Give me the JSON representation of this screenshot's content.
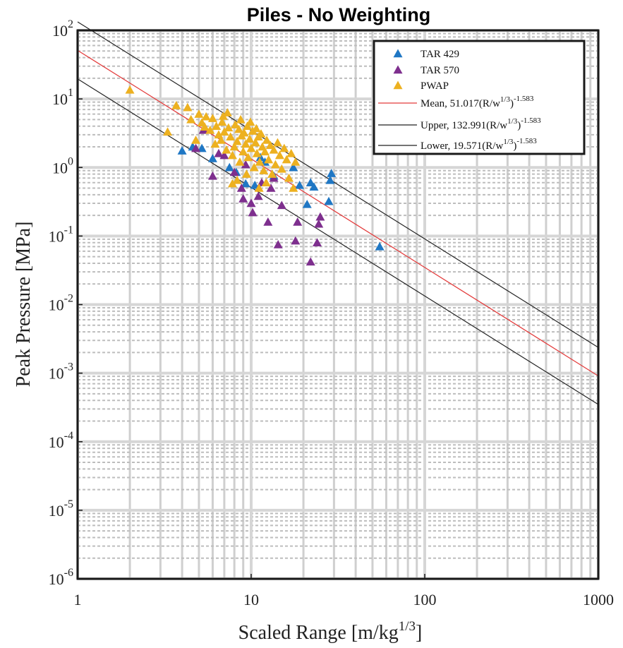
{
  "chart_data": {
    "type": "scatter",
    "title": "Piles - No Weighting",
    "xlabel": "Scaled Range [m/kg",
    "xlabel_sup": "1/3",
    "xlabel_end": "]",
    "ylabel": "Peak Pressure [MPa]",
    "xscale": "log",
    "yscale": "log",
    "xlim": [
      1,
      1000
    ],
    "ylim": [
      1e-06,
      100
    ],
    "x_ticks": [
      1,
      10,
      100,
      1000
    ],
    "x_tick_labels": [
      "1",
      "10",
      "100",
      "1000"
    ],
    "y_ticks": [
      {
        "value": 100,
        "base": "10",
        "exp": "2"
      },
      {
        "value": 10,
        "base": "10",
        "exp": "1"
      },
      {
        "value": 1,
        "base": "10",
        "exp": "0"
      },
      {
        "value": 0.1,
        "base": "10",
        "exp": "-1"
      },
      {
        "value": 0.01,
        "base": "10",
        "exp": "-2"
      },
      {
        "value": 0.001,
        "base": "10",
        "exp": "-3"
      },
      {
        "value": 0.0001,
        "base": "10",
        "exp": "-4"
      },
      {
        "value": 1e-05,
        "base": "10",
        "exp": "-5"
      },
      {
        "value": 1e-06,
        "base": "10",
        "exp": "-6"
      }
    ],
    "grid": true,
    "legend_position": "top-right",
    "series": [
      {
        "name": "TAR 429",
        "marker": "triangle",
        "color": "#1f77c4",
        "points": [
          [
            4.0,
            1.75
          ],
          [
            4.6,
            2.0
          ],
          [
            5.2,
            1.9
          ],
          [
            6.0,
            1.35
          ],
          [
            7.5,
            1.0
          ],
          [
            8.2,
            0.85
          ],
          [
            9.3,
            0.58
          ],
          [
            10.5,
            0.55
          ],
          [
            11.3,
            1.4
          ],
          [
            12.0,
            1.2
          ],
          [
            13.5,
            0.75
          ],
          [
            17.5,
            1.0
          ],
          [
            19.0,
            0.55
          ],
          [
            21.0,
            0.29
          ],
          [
            22.0,
            0.6
          ],
          [
            23.0,
            0.52
          ],
          [
            28.0,
            0.32
          ],
          [
            28.5,
            0.65
          ],
          [
            29.0,
            0.82
          ],
          [
            55.0,
            0.07
          ]
        ]
      },
      {
        "name": "TAR 570",
        "marker": "triangle",
        "color": "#7e2f8e",
        "points": [
          [
            4.8,
            1.9
          ],
          [
            5.3,
            3.5
          ],
          [
            6.0,
            0.75
          ],
          [
            6.5,
            1.6
          ],
          [
            7.0,
            1.5
          ],
          [
            8.0,
            0.85
          ],
          [
            8.8,
            0.5
          ],
          [
            9.0,
            0.35
          ],
          [
            9.3,
            1.1
          ],
          [
            10.0,
            0.3
          ],
          [
            10.2,
            0.22
          ],
          [
            11.0,
            0.38
          ],
          [
            11.5,
            0.6
          ],
          [
            12.5,
            0.16
          ],
          [
            13.0,
            0.5
          ],
          [
            13.5,
            0.7
          ],
          [
            14.3,
            0.075
          ],
          [
            15.0,
            0.28
          ],
          [
            18.0,
            0.085
          ],
          [
            18.5,
            0.16
          ],
          [
            22.0,
            0.042
          ],
          [
            24.0,
            0.08
          ],
          [
            24.5,
            0.15
          ],
          [
            25.0,
            0.19
          ]
        ]
      },
      {
        "name": "PWAP",
        "marker": "triangle",
        "color": "#edb120",
        "points": [
          [
            2.0,
            13.5
          ],
          [
            3.3,
            3.3
          ],
          [
            3.7,
            8.0
          ],
          [
            4.3,
            7.5
          ],
          [
            4.5,
            5.0
          ],
          [
            4.8,
            2.5
          ],
          [
            5.0,
            6.0
          ],
          [
            5.2,
            4.5
          ],
          [
            5.5,
            5.5
          ],
          [
            5.8,
            3.5
          ],
          [
            6.0,
            5.2
          ],
          [
            6.2,
            2.2
          ],
          [
            6.3,
            4.0
          ],
          [
            6.5,
            3.0
          ],
          [
            6.7,
            2.5
          ],
          [
            6.8,
            4.6
          ],
          [
            7.0,
            3.3
          ],
          [
            7.2,
            1.8
          ],
          [
            7.4,
            3.8
          ],
          [
            7.6,
            2.8
          ],
          [
            7.8,
            1.5
          ],
          [
            8.0,
            2.0
          ],
          [
            8.1,
            4.2
          ],
          [
            8.3,
            2.4
          ],
          [
            8.5,
            3.6
          ],
          [
            8.6,
            1.2
          ],
          [
            8.8,
            2.9
          ],
          [
            9.0,
            1.7
          ],
          [
            9.1,
            3.2
          ],
          [
            9.3,
            2.2
          ],
          [
            9.5,
            4.0
          ],
          [
            9.6,
            1.4
          ],
          [
            9.8,
            2.6
          ],
          [
            10.0,
            1.9
          ],
          [
            10.2,
            3.4
          ],
          [
            10.4,
            1.0
          ],
          [
            10.6,
            2.3
          ],
          [
            10.8,
            1.6
          ],
          [
            11.0,
            2.8
          ],
          [
            11.2,
            1.2
          ],
          [
            11.4,
            3.1
          ],
          [
            11.6,
            2.0
          ],
          [
            11.8,
            0.9
          ],
          [
            12.0,
            1.7
          ],
          [
            12.3,
            2.5
          ],
          [
            12.6,
            1.3
          ],
          [
            12.9,
            2.1
          ],
          [
            13.2,
            0.8
          ],
          [
            13.5,
            1.8
          ],
          [
            13.8,
            1.1
          ],
          [
            14.2,
            2.3
          ],
          [
            14.6,
            1.5
          ],
          [
            15.0,
            0.95
          ],
          [
            15.5,
            1.9
          ],
          [
            16.0,
            1.3
          ],
          [
            16.5,
            0.7
          ],
          [
            17.0,
            1.6
          ],
          [
            17.5,
            0.5
          ],
          [
            18.0,
            1.2
          ],
          [
            7.8,
            0.58
          ],
          [
            8.3,
            0.65
          ],
          [
            9.4,
            0.8
          ],
          [
            11.1,
            0.5
          ],
          [
            12.2,
            0.6
          ],
          [
            6.9,
            5.6
          ],
          [
            7.3,
            6.3
          ],
          [
            8.7,
            5.0
          ],
          [
            9.9,
            4.6
          ],
          [
            10.7,
            3.7
          ],
          [
            5.4,
            3.9
          ]
        ]
      }
    ],
    "lines": [
      {
        "name": "Mean",
        "coef_label": "Mean, 51.017(R/w",
        "sup": "1/3",
        "close": ")",
        "exp_label": "-1.583",
        "coefficient": 51.017,
        "exponent": -1.583,
        "color": "#e33a3a"
      },
      {
        "name": "Upper",
        "coef_label": "Upper, 132.991(R/w",
        "sup": "1/3",
        "close": ")",
        "exp_label": "-1.583",
        "coefficient": 132.991,
        "exponent": -1.583,
        "color": "#222222"
      },
      {
        "name": "Lower",
        "coef_label": "Lower, 19.571(R/w",
        "sup": "1/3",
        "close": ")",
        "exp_label": "-1.583",
        "coefficient": 19.571,
        "exponent": -1.583,
        "color": "#222222"
      }
    ]
  }
}
